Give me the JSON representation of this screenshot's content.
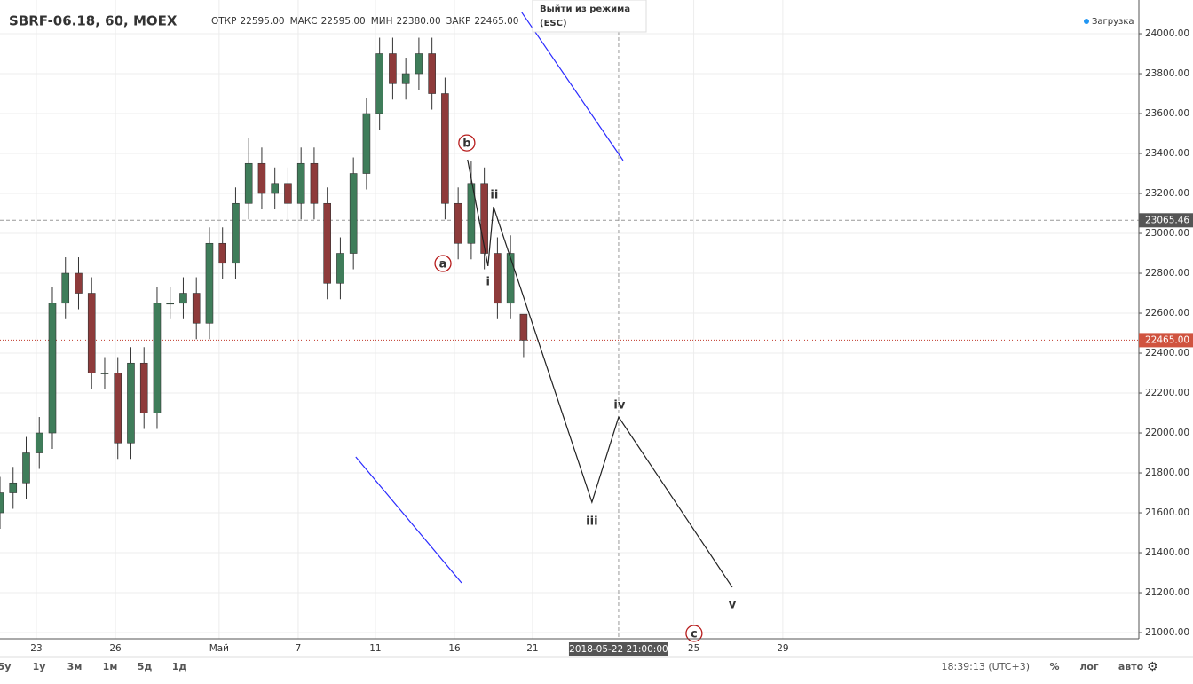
{
  "header": {
    "symbol": "SBRF-06.18, 60, MOEX",
    "ohlc": [
      {
        "label": "ОТКР",
        "value": "22595.00"
      },
      {
        "label": "МАКС",
        "value": "22595.00"
      },
      {
        "label": "МИН",
        "value": "22380.00"
      },
      {
        "label": "ЗАКР",
        "value": "22465.00"
      }
    ],
    "status": "Загрузка",
    "tooltip": [
      "Выйти из режима",
      "(ESC)"
    ]
  },
  "chart_data": {
    "type": "candlestick",
    "up_color": "#3f7d5a",
    "down_color": "#8e3b3b",
    "grid": true,
    "xlim": [
      0,
      43.5
    ],
    "ylim": [
      20969,
      24169
    ],
    "xticks": [
      {
        "value": 1.39,
        "label": "23"
      },
      {
        "value": 4.41,
        "label": "26"
      },
      {
        "value": 8.37,
        "label": "Май"
      },
      {
        "value": 11.39,
        "label": "7"
      },
      {
        "value": 14.34,
        "label": "11"
      },
      {
        "value": 17.36,
        "label": "16"
      },
      {
        "value": 20.34,
        "label": "21"
      },
      {
        "value": 26.5,
        "label": "25"
      },
      {
        "value": 29.9,
        "label": "29"
      }
    ],
    "yticks": [
      {
        "value": 21000,
        "label": "21000.00"
      },
      {
        "value": 21200,
        "label": "21200.00"
      },
      {
        "value": 21400,
        "label": "21400.00"
      },
      {
        "value": 21600,
        "label": "21600.00"
      },
      {
        "value": 21800,
        "label": "21800.00"
      },
      {
        "value": 22000,
        "label": "22000.00"
      },
      {
        "value": 22200,
        "label": "22200.00"
      },
      {
        "value": 22400,
        "label": "22400.00"
      },
      {
        "value": 22600,
        "label": "22600.00"
      },
      {
        "value": 22800,
        "label": "22800.00"
      },
      {
        "value": 23000,
        "label": "23000.00"
      },
      {
        "value": 23200,
        "label": "23200.00"
      },
      {
        "value": 23400,
        "label": "23400.00"
      },
      {
        "value": 23600,
        "label": "23600.00"
      },
      {
        "value": 23800,
        "label": "23800.00"
      },
      {
        "value": 24000,
        "label": "24000.00"
      }
    ],
    "x": [
      0,
      0.5,
      1,
      1.5,
      2,
      2.5,
      3,
      3.5,
      4,
      4.5,
      5,
      5.5,
      6,
      6.5,
      7,
      7.5,
      8,
      8.5,
      9,
      9.5,
      10,
      10.5,
      11,
      11.5,
      12,
      12.5,
      13,
      13.5,
      14,
      14.5,
      15,
      15.5,
      16,
      16.5,
      17,
      17.5,
      18,
      18.5,
      19,
      19.5,
      20
    ],
    "open": [
      21600,
      21700,
      21750,
      21900,
      22000,
      22650,
      22800,
      22700,
      22300,
      22300,
      21950,
      22350,
      22100,
      22650,
      22650,
      22700,
      22550,
      22950,
      22850,
      23150,
      23350,
      23200,
      23250,
      23150,
      23350,
      23150,
      22750,
      22900,
      23300,
      23600,
      23900,
      23750,
      23800,
      23900,
      23700,
      23150,
      22950,
      23250,
      22900,
      22650,
      22595
    ],
    "high": [
      21780,
      21830,
      21980,
      22080,
      22730,
      22880,
      22880,
      22780,
      22380,
      22380,
      22430,
      22430,
      22730,
      22730,
      22780,
      22780,
      23030,
      23030,
      23230,
      23480,
      23430,
      23330,
      23330,
      23430,
      23430,
      23230,
      22980,
      23380,
      23680,
      23980,
      23980,
      23880,
      23980,
      23980,
      23780,
      23230,
      23360,
      23330,
      22980,
      22990,
      22595
    ],
    "low": [
      21520,
      21620,
      21670,
      21820,
      21920,
      22570,
      22620,
      22220,
      22220,
      21870,
      21870,
      22020,
      22020,
      22570,
      22570,
      22470,
      22470,
      22770,
      22770,
      23070,
      23120,
      23120,
      23070,
      23070,
      23070,
      22670,
      22670,
      22820,
      23220,
      23520,
      23670,
      23670,
      23720,
      23620,
      23070,
      22870,
      22870,
      22820,
      22570,
      22570,
      22380
    ],
    "close": [
      21700,
      21750,
      21900,
      22000,
      22650,
      22800,
      22700,
      22300,
      22300,
      21950,
      22350,
      22100,
      22650,
      22650,
      22700,
      22550,
      22950,
      22850,
      23150,
      23350,
      23200,
      23250,
      23150,
      23350,
      23150,
      22750,
      22900,
      23300,
      23600,
      23900,
      23750,
      23800,
      23900,
      23700,
      23150,
      22950,
      23250,
      22900,
      22650,
      22900,
      22465
    ],
    "crosshair": {
      "x": {
        "value": 23.63,
        "label": "2018-05-22 21:00:00"
      },
      "y": {
        "value": 23065.46,
        "label": "23065.46"
      }
    },
    "last_price": {
      "value": 22465,
      "label": "22465.00"
    },
    "wave_line": {
      "x": [
        17.86,
        18.64,
        18.85,
        22.61,
        23.63,
        27.97
      ],
      "y": [
        23369,
        22836,
        23133,
        21653,
        22080,
        21227
      ]
    },
    "trend_lines": [
      {
        "x": [
          19.93,
          23.8
        ],
        "y": [
          24107,
          23365
        ]
      },
      {
        "x": [
          13.59,
          17.63
        ],
        "y": [
          21880,
          21249
        ]
      }
    ],
    "wave_labels": [
      {
        "text": "a",
        "x": 16.92,
        "y": 22849,
        "circled": true
      },
      {
        "text": "b",
        "x": 17.83,
        "y": 23453,
        "circled": true
      },
      {
        "text": "c",
        "x": 26.51,
        "y": 20996,
        "circled": true
      },
      {
        "text": "i",
        "x": 18.64,
        "y": 22760,
        "circled": false
      },
      {
        "text": "ii",
        "x": 18.88,
        "y": 23196,
        "circled": false
      },
      {
        "text": "iii",
        "x": 22.61,
        "y": 21560,
        "circled": false
      },
      {
        "text": "iv",
        "x": 23.66,
        "y": 22142,
        "circled": false
      },
      {
        "text": "v",
        "x": 27.97,
        "y": 21142,
        "circled": false
      }
    ]
  },
  "toolbar": {
    "ranges": [
      "5у",
      "1у",
      "3м",
      "1м",
      "5д",
      "1д"
    ],
    "time": "18:39:13 (UTC+3)",
    "buttons": [
      "%",
      "лог",
      "авто"
    ]
  }
}
